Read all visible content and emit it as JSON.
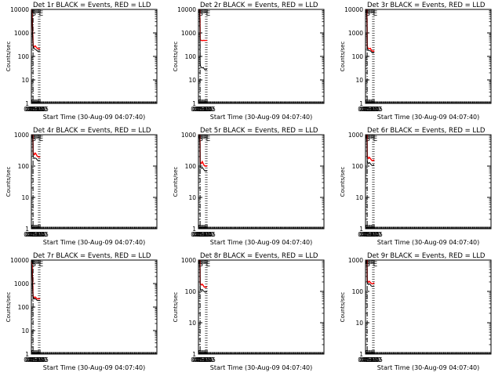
{
  "colors": {
    "events": "#000000",
    "lld": "#ff0000",
    "background": "#ffffff",
    "axes": "#000000"
  },
  "chart_data": [
    {
      "type": "line",
      "title": "Det 1r BLACK = Events, RED = LLD",
      "ylabel": "Counts/sec",
      "xlabel": "Start Time (30-Aug-09 04:07:40)",
      "yscale": "log",
      "ylim": [
        1,
        10000
      ],
      "ytick_labels": [
        "1",
        "10",
        "100",
        "1000",
        "10000"
      ],
      "xlim": [
        "04:06",
        "03:50 (+1d)"
      ],
      "xtick_labels": [
        "04:15",
        "04:30",
        "04:45",
        "05:00",
        "05:15",
        "05:30",
        "05:45"
      ],
      "markers": {
        "S": "04:08",
        "E": "05:30"
      },
      "vlines": {
        "dashdot": "04:25",
        "dotted": [
          "05:27",
          "05:43"
        ]
      },
      "series": [
        {
          "role": "events",
          "x": [
            "04:07",
            "04:15",
            "04:20",
            "04:24",
            "04:26",
            "04:30",
            "04:40",
            "04:50",
            "05:00",
            "05:10",
            "05:20",
            "05:30",
            "05:40",
            "05:45"
          ],
          "y": [
            10000,
            4000,
            800,
            400,
            300,
            240,
            210,
            200,
            190,
            175,
            165,
            170,
            170,
            165
          ]
        },
        {
          "role": "lld",
          "x": [
            "04:07",
            "04:15",
            "04:20",
            "04:24",
            "04:26",
            "04:30",
            "04:40",
            "04:50",
            "05:00",
            "05:10",
            "05:20",
            "05:30",
            "05:40",
            "05:45"
          ],
          "y": [
            10000,
            5000,
            1000,
            500,
            330,
            270,
            255,
            280,
            250,
            225,
            210,
            215,
            210,
            210
          ]
        }
      ]
    },
    {
      "type": "line",
      "title": "Det 2r BLACK = Events, RED = LLD",
      "ylabel": "Counts/sec",
      "xlabel": "Start Time (30-Aug-09 04:07:40)",
      "yscale": "log",
      "ylim": [
        1,
        10000
      ],
      "ytick_labels": [
        "1",
        "10",
        "100",
        "1000",
        "10000"
      ],
      "xlim": [
        "04:06",
        "03:50 (+1d)"
      ],
      "xtick_labels": [
        "04:15",
        "04:30",
        "04:45",
        "05:00",
        "05:15",
        "05:30",
        "05:45"
      ],
      "markers": {
        "S": "04:08",
        "E": "05:30"
      },
      "vlines": {
        "dashdot": "04:25",
        "dotted": [
          "05:27",
          "05:43"
        ]
      },
      "series": [
        {
          "role": "events",
          "x": [
            "04:07",
            "04:20",
            "04:24",
            "04:26",
            "04:30",
            "04:40",
            "04:50",
            "05:00",
            "05:10",
            "05:20",
            "05:30",
            "05:40",
            "05:45"
          ],
          "y": [
            10000,
            10000,
            800,
            50,
            38,
            34,
            32,
            34,
            30,
            27,
            28,
            28,
            28
          ]
        },
        {
          "role": "lld",
          "x": [
            "04:07",
            "04:20",
            "04:24",
            "04:26",
            "04:30",
            "04:40",
            "04:50",
            "05:00",
            "05:10",
            "05:20",
            "05:30",
            "05:40",
            "05:45"
          ],
          "y": [
            10000,
            10000,
            3000,
            520,
            490,
            480,
            470,
            480,
            480,
            475,
            480,
            480,
            480
          ]
        }
      ]
    },
    {
      "type": "line",
      "title": "Det 3r BLACK = Events, RED = LLD",
      "ylabel": "Counts/sec",
      "xlabel": "Start Time (30-Aug-09 04:07:40)",
      "yscale": "log",
      "ylim": [
        1,
        10000
      ],
      "ytick_labels": [
        "1",
        "10",
        "100",
        "1000",
        "10000"
      ],
      "xlim": [
        "04:06",
        "03:50 (+1d)"
      ],
      "xtick_labels": [
        "04:15",
        "04:30",
        "04:45",
        "05:00",
        "05:15",
        "05:30",
        "05:45"
      ],
      "markers": {
        "S": "04:08",
        "E": "05:30"
      },
      "vlines": {
        "dashdot": "04:25",
        "dotted": [
          "05:27",
          "05:43"
        ]
      },
      "series": [
        {
          "role": "events",
          "x": [
            "04:07",
            "04:20",
            "04:24",
            "04:26",
            "04:30",
            "04:40",
            "04:50",
            "05:00",
            "05:10",
            "05:20",
            "05:30",
            "05:40",
            "05:45"
          ],
          "y": [
            10000,
            10000,
            2000,
            250,
            200,
            180,
            175,
            175,
            160,
            145,
            140,
            145,
            145
          ]
        },
        {
          "role": "lld",
          "x": [
            "04:07",
            "04:20",
            "04:24",
            "04:26",
            "04:30",
            "04:40",
            "04:50",
            "05:00",
            "05:10",
            "05:20",
            "05:30",
            "05:40",
            "05:45"
          ],
          "y": [
            10000,
            10000,
            2500,
            300,
            230,
            215,
            210,
            220,
            190,
            170,
            165,
            170,
            175
          ]
        }
      ]
    },
    {
      "type": "line",
      "title": "Det 4r BLACK = Events, RED = LLD",
      "ylabel": "Counts/sec",
      "xlabel": "Start Time (30-Aug-09 04:07:40)",
      "yscale": "log",
      "ylim": [
        1,
        1000
      ],
      "ytick_labels": [
        "1",
        "10",
        "100",
        "1000"
      ],
      "xlim": [
        "04:06",
        "03:50 (+1d)"
      ],
      "xtick_labels": [
        "04:15",
        "04:30",
        "04:45",
        "05:00",
        "05:15",
        "05:30",
        "05:45"
      ],
      "markers": {
        "S": "04:08",
        "E": "05:30"
      },
      "vlines": {
        "dashdot": "04:25",
        "dotted": [
          "05:27",
          "05:43"
        ]
      },
      "series": [
        {
          "role": "events",
          "x": [
            "04:07",
            "04:20",
            "04:24",
            "04:26",
            "04:30",
            "04:40",
            "04:50",
            "05:00",
            "05:10",
            "05:20",
            "05:30",
            "05:40",
            "05:45"
          ],
          "y": [
            1000,
            1000,
            700,
            220,
            190,
            175,
            180,
            175,
            160,
            150,
            150,
            150,
            150
          ]
        },
        {
          "role": "lld",
          "x": [
            "04:07",
            "04:20",
            "04:24",
            "04:26",
            "04:30",
            "04:40",
            "04:50",
            "05:00",
            "05:10",
            "05:20",
            "05:30",
            "05:40",
            "05:45"
          ],
          "y": [
            1000,
            1000,
            900,
            280,
            250,
            230,
            260,
            240,
            210,
            200,
            195,
            195,
            200
          ]
        }
      ]
    },
    {
      "type": "line",
      "title": "Det 5r BLACK = Events, RED = LLD",
      "ylabel": "Counts/sec",
      "xlabel": "Start Time (30-Aug-09 04:07:40)",
      "yscale": "log",
      "ylim": [
        1,
        1000
      ],
      "ytick_labels": [
        "1",
        "10",
        "100",
        "1000"
      ],
      "xlim": [
        "04:06",
        "03:50 (+1d)"
      ],
      "xtick_labels": [
        "04:15",
        "04:30",
        "04:45",
        "05:00",
        "05:15",
        "05:30",
        "05:45"
      ],
      "markers": {
        "S": "04:08",
        "E": "05:30"
      },
      "vlines": {
        "dashdot": "04:25",
        "dotted": [
          "05:27",
          "05:43"
        ]
      },
      "series": [
        {
          "role": "events",
          "x": [
            "04:07",
            "04:20",
            "04:24",
            "04:26",
            "04:30",
            "04:40",
            "04:50",
            "05:00",
            "05:10",
            "05:20",
            "05:30",
            "05:40",
            "05:45"
          ],
          "y": [
            1000,
            1000,
            400,
            100,
            90,
            85,
            90,
            82,
            75,
            70,
            70,
            70,
            70
          ]
        },
        {
          "role": "lld",
          "x": [
            "04:07",
            "04:20",
            "04:24",
            "04:26",
            "04:30",
            "04:40",
            "04:50",
            "05:00",
            "05:10",
            "05:20",
            "05:30",
            "05:40",
            "05:45"
          ],
          "y": [
            1000,
            1000,
            600,
            140,
            125,
            120,
            140,
            120,
            105,
            100,
            100,
            100,
            105
          ]
        }
      ]
    },
    {
      "type": "line",
      "title": "Det 6r BLACK = Events, RED = LLD",
      "ylabel": "Counts/sec",
      "xlabel": "Start Time (30-Aug-09 04:07:40)",
      "yscale": "log",
      "ylim": [
        1,
        1000
      ],
      "ytick_labels": [
        "1",
        "10",
        "100",
        "1000"
      ],
      "xlim": [
        "04:06",
        "03:50 (+1d)"
      ],
      "xtick_labels": [
        "04:15",
        "04:30",
        "04:45",
        "05:00",
        "05:15",
        "05:30",
        "05:45"
      ],
      "markers": {
        "S": "04:08",
        "E": "05:30"
      },
      "vlines": {
        "dashdot": "04:25",
        "dotted": [
          "05:27",
          "05:43"
        ]
      },
      "series": [
        {
          "role": "events",
          "x": [
            "04:07",
            "04:20",
            "04:24",
            "04:26",
            "04:30",
            "04:40",
            "04:50",
            "05:00",
            "05:10",
            "05:20",
            "05:30",
            "05:40",
            "05:45"
          ],
          "y": [
            1000,
            1000,
            600,
            150,
            130,
            120,
            130,
            120,
            110,
            105,
            105,
            110,
            110
          ]
        },
        {
          "role": "lld",
          "x": [
            "04:07",
            "04:20",
            "04:24",
            "04:26",
            "04:30",
            "04:40",
            "04:50",
            "05:00",
            "05:10",
            "05:20",
            "05:30",
            "05:40",
            "05:45"
          ],
          "y": [
            1000,
            1000,
            900,
            220,
            190,
            175,
            190,
            175,
            160,
            150,
            150,
            155,
            160
          ]
        }
      ]
    },
    {
      "type": "line",
      "title": "Det 7r BLACK = Events, RED = LLD",
      "ylabel": "Counts/sec",
      "xlabel": "Start Time (30-Aug-09 04:07:40)",
      "yscale": "log",
      "ylim": [
        1,
        10000
      ],
      "ytick_labels": [
        "1",
        "10",
        "100",
        "1000",
        "10000"
      ],
      "xlim": [
        "04:06",
        "03:50 (+1d)"
      ],
      "xtick_labels": [
        "04:15",
        "04:30",
        "04:45",
        "05:00",
        "05:15",
        "05:30",
        "05:45"
      ],
      "markers": {
        "S": "04:08",
        "E": "05:30"
      },
      "vlines": {
        "dashdot": "04:25",
        "dotted": [
          "05:27",
          "05:43"
        ]
      },
      "series": [
        {
          "role": "events",
          "x": [
            "04:07",
            "04:15",
            "04:20",
            "04:24",
            "04:26",
            "04:30",
            "04:40",
            "04:50",
            "05:00",
            "05:10",
            "05:20",
            "05:30",
            "05:40",
            "05:45"
          ],
          "y": [
            8000,
            3000,
            700,
            350,
            280,
            240,
            220,
            230,
            210,
            195,
            190,
            190,
            190,
            185
          ]
        },
        {
          "role": "lld",
          "x": [
            "04:07",
            "04:15",
            "04:20",
            "04:24",
            "04:26",
            "04:30",
            "04:40",
            "04:50",
            "05:00",
            "05:10",
            "05:20",
            "05:30",
            "05:40",
            "05:45"
          ],
          "y": [
            8000,
            5000,
            1200,
            400,
            310,
            270,
            250,
            270,
            245,
            225,
            220,
            225,
            225,
            220
          ]
        }
      ]
    },
    {
      "type": "line",
      "title": "Det 8r BLACK = Events, RED = LLD",
      "ylabel": "Counts/sec",
      "xlabel": "Start Time (30-Aug-09 04:07:40)",
      "yscale": "log",
      "ylim": [
        1,
        1000
      ],
      "ytick_labels": [
        "1",
        "10",
        "100",
        "1000"
      ],
      "xlim": [
        "04:06",
        "03:50 (+1d)"
      ],
      "xtick_labels": [
        "04:15",
        "04:30",
        "04:45",
        "05:00",
        "05:15",
        "05:30",
        "05:45"
      ],
      "markers": {
        "S": "04:08",
        "E": "05:30"
      },
      "vlines": {
        "dashdot": "04:25",
        "dotted": [
          "05:27",
          "05:43"
        ]
      },
      "series": [
        {
          "role": "events",
          "x": [
            "04:07",
            "04:20",
            "04:24",
            "04:26",
            "04:30",
            "04:40",
            "04:50",
            "05:00",
            "05:10",
            "05:20",
            "05:30",
            "05:40",
            "05:45"
          ],
          "y": [
            1000,
            1000,
            500,
            130,
            115,
            110,
            115,
            105,
            100,
            95,
            95,
            100,
            100
          ]
        },
        {
          "role": "lld",
          "x": [
            "04:07",
            "04:20",
            "04:24",
            "04:26",
            "04:30",
            "04:40",
            "04:50",
            "05:00",
            "05:10",
            "05:20",
            "05:30",
            "05:40",
            "05:45"
          ],
          "y": [
            1000,
            1000,
            800,
            190,
            170,
            160,
            170,
            155,
            140,
            135,
            135,
            140,
            140
          ]
        }
      ]
    },
    {
      "type": "line",
      "title": "Det 9r BLACK = Events, RED = LLD",
      "ylabel": "Counts/sec",
      "xlabel": "Start Time (30-Aug-09 04:07:40)",
      "yscale": "log",
      "ylim": [
        1,
        1000
      ],
      "ytick_labels": [
        "1",
        "10",
        "100",
        "1000"
      ],
      "xlim": [
        "04:06",
        "03:50 (+1d)"
      ],
      "xtick_labels": [
        "04:15",
        "04:30",
        "04:45",
        "05:00",
        "05:15",
        "05:30",
        "05:45"
      ],
      "markers": {
        "S": "04:08",
        "E": "05:30"
      },
      "vlines": {
        "dashdot": "04:25",
        "dotted": [
          "05:27",
          "05:43"
        ]
      },
      "series": [
        {
          "role": "events",
          "x": [
            "04:07",
            "04:20",
            "04:24",
            "04:26",
            "04:30",
            "04:40",
            "04:50",
            "05:00",
            "05:10",
            "05:20",
            "05:30",
            "05:40",
            "05:45"
          ],
          "y": [
            1000,
            1000,
            700,
            200,
            180,
            165,
            175,
            165,
            150,
            145,
            145,
            150,
            150
          ]
        },
        {
          "role": "lld",
          "x": [
            "04:07",
            "04:20",
            "04:24",
            "04:26",
            "04:30",
            "04:40",
            "04:50",
            "05:00",
            "05:10",
            "05:20",
            "05:30",
            "05:40",
            "05:45"
          ],
          "y": [
            1000,
            1000,
            900,
            230,
            210,
            195,
            210,
            195,
            180,
            175,
            175,
            185,
            190
          ]
        }
      ]
    }
  ]
}
